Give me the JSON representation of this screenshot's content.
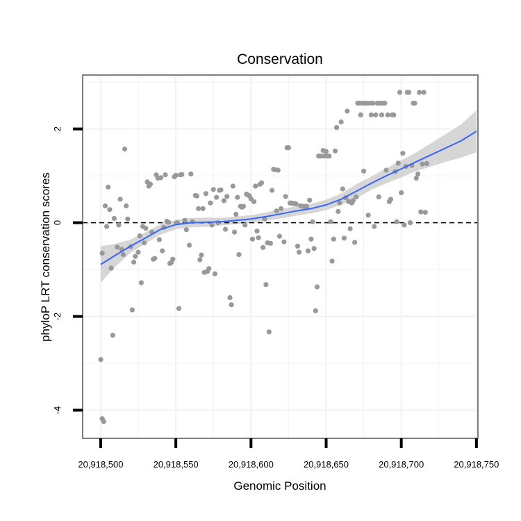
{
  "chart_data": {
    "type": "scatter",
    "title": "Conservation",
    "xlabel": "Genomic Position",
    "ylabel": "phyloP LRT conservation scores",
    "xlim": [
      20918488,
      20918751
    ],
    "ylim": [
      -4.6,
      3.15
    ],
    "x_ticks": [
      {
        "value": 20918500,
        "label": "20,918,500"
      },
      {
        "value": 20918550,
        "label": "20,918,550"
      },
      {
        "value": 20918600,
        "label": "20,918,600"
      },
      {
        "value": 20918650,
        "label": "20,918,650"
      },
      {
        "value": 20918700,
        "label": "20,918,700"
      },
      {
        "value": 20918750,
        "label": "20,918,750"
      }
    ],
    "y_ticks": [
      {
        "value": 2,
        "label": "2"
      },
      {
        "value": 0,
        "label": "0"
      },
      {
        "value": -2,
        "label": "-2"
      },
      {
        "value": -4,
        "label": "-4"
      }
    ],
    "grid": true,
    "reference_line": {
      "y": 0,
      "style": "dashed"
    },
    "colors": {
      "points": "#999999",
      "smooth": "#3366ff",
      "band": "#cccccc",
      "frame": "#7f7f7f",
      "grid": "#f2f2f2"
    },
    "points": [
      [
        20918500,
        -2.92
      ],
      [
        20918501,
        -4.18
      ],
      [
        20918502,
        -4.24
      ],
      [
        20918501,
        -0.65
      ],
      [
        20918503,
        0.36
      ],
      [
        20918504,
        -0.08
      ],
      [
        20918505,
        0.76
      ],
      [
        20918506,
        0.28
      ],
      [
        20918507,
        -0.97
      ],
      [
        20918508,
        -2.4
      ],
      [
        20918509,
        0.09
      ],
      [
        20918511,
        -0.52
      ],
      [
        20918512,
        -0.05
      ],
      [
        20918513,
        0.5
      ],
      [
        20918514,
        -0.57
      ],
      [
        20918515,
        -0.68
      ],
      [
        20918516,
        1.57
      ],
      [
        20918517,
        0.36
      ],
      [
        20918518,
        0.08
      ],
      [
        20918520,
        -0.51
      ],
      [
        20918521,
        -1.86
      ],
      [
        20918522,
        -0.84
      ],
      [
        20918523,
        -0.72
      ],
      [
        20918525,
        -0.63
      ],
      [
        20918526,
        -0.28
      ],
      [
        20918527,
        -1.28
      ],
      [
        20918528,
        -0.08
      ],
      [
        20918529,
        -0.43
      ],
      [
        20918530,
        -0.12
      ],
      [
        20918531,
        0.87
      ],
      [
        20918532,
        0.78
      ],
      [
        20918533,
        0.82
      ],
      [
        20918534,
        -0.2
      ],
      [
        20918535,
        -0.78
      ],
      [
        20918536,
        -0.76
      ],
      [
        20918537,
        1.02
      ],
      [
        20918538,
        0.95
      ],
      [
        20918539,
        -0.36
      ],
      [
        20918540,
        0.96
      ],
      [
        20918541,
        -0.6
      ],
      [
        20918542,
        -0.1
      ],
      [
        20918543,
        1.02
      ],
      [
        20918544,
        0.03
      ],
      [
        20918545,
        0.01
      ],
      [
        20918546,
        -0.87
      ],
      [
        20918547,
        -0.85
      ],
      [
        20918548,
        -0.78
      ],
      [
        20918549,
        0.98
      ],
      [
        20918550,
        1.01
      ],
      [
        20918551,
        0.0
      ],
      [
        20918552,
        -1.83
      ],
      [
        20918553,
        1.02
      ],
      [
        20918554,
        1.03
      ],
      [
        20918556,
        0.05
      ],
      [
        20918557,
        -0.15
      ],
      [
        20918559,
        -0.48
      ],
      [
        20918560,
        1.04
      ],
      [
        20918561,
        0.02
      ],
      [
        20918563,
        0.58
      ],
      [
        20918564,
        0.57
      ],
      [
        20918565,
        0.3
      ],
      [
        20918566,
        -0.79
      ],
      [
        20918567,
        -0.69
      ],
      [
        20918568,
        0.3
      ],
      [
        20918569,
        -1.06
      ],
      [
        20918570,
        0.62
      ],
      [
        20918571,
        -1.04
      ],
      [
        20918572,
        -0.98
      ],
      [
        20918573,
        0.42
      ],
      [
        20918574,
        -0.05
      ],
      [
        20918575,
        0.71
      ],
      [
        20918576,
        -1.09
      ],
      [
        20918577,
        0.54
      ],
      [
        20918578,
        0.0
      ],
      [
        20918579,
        0.69
      ],
      [
        20918580,
        0.7
      ],
      [
        20918582,
        0.47
      ],
      [
        20918583,
        -0.14
      ],
      [
        20918584,
        0.56
      ],
      [
        20918586,
        -1.6
      ],
      [
        20918587,
        -1.75
      ],
      [
        20918588,
        0.78
      ],
      [
        20918589,
        -0.2
      ],
      [
        20918590,
        0.18
      ],
      [
        20918591,
        0.54
      ],
      [
        20918592,
        -0.68
      ],
      [
        20918593,
        0.35
      ],
      [
        20918594,
        0.33
      ],
      [
        20918595,
        0.35
      ],
      [
        20918596,
        -0.05
      ],
      [
        20918597,
        0.61
      ],
      [
        20918598,
        0.59
      ],
      [
        20918599,
        0.57
      ],
      [
        20918600,
        0.51
      ],
      [
        20918601,
        -0.35
      ],
      [
        20918602,
        0.45
      ],
      [
        20918603,
        0.78
      ],
      [
        20918604,
        -0.18
      ],
      [
        20918605,
        -0.32
      ],
      [
        20918606,
        0.82
      ],
      [
        20918607,
        0.85
      ],
      [
        20918608,
        -0.53
      ],
      [
        20918609,
        0.08
      ],
      [
        20918610,
        -1.32
      ],
      [
        20918611,
        -0.43
      ],
      [
        20918612,
        -2.33
      ],
      [
        20918613,
        -0.44
      ],
      [
        20918614,
        0.69
      ],
      [
        20918615,
        1.14
      ],
      [
        20918616,
        1.13
      ],
      [
        20918617,
        0.25
      ],
      [
        20918618,
        1.12
      ],
      [
        20918619,
        -0.29
      ],
      [
        20918620,
        0.3
      ],
      [
        20918622,
        -0.41
      ],
      [
        20918623,
        0.56
      ],
      [
        20918624,
        1.6
      ],
      [
        20918625,
        1.6
      ],
      [
        20918626,
        0.42
      ],
      [
        20918627,
        0.42
      ],
      [
        20918628,
        0.41
      ],
      [
        20918629,
        0.41
      ],
      [
        20918630,
        0.4
      ],
      [
        20918631,
        -0.5
      ],
      [
        20918632,
        -0.63
      ],
      [
        20918633,
        0.36
      ],
      [
        20918634,
        0.35
      ],
      [
        20918635,
        0.35
      ],
      [
        20918636,
        0.35
      ],
      [
        20918637,
        0.35
      ],
      [
        20918638,
        -0.6
      ],
      [
        20918639,
        0.48
      ],
      [
        20918640,
        -0.35
      ],
      [
        20918641,
        0.02
      ],
      [
        20918642,
        -0.55
      ],
      [
        20918643,
        -1.88
      ],
      [
        20918644,
        -1.37
      ],
      [
        20918645,
        1.42
      ],
      [
        20918646,
        1.42
      ],
      [
        20918647,
        1.42
      ],
      [
        20918648,
        1.54
      ],
      [
        20918649,
        1.42
      ],
      [
        20918650,
        1.52
      ],
      [
        20918651,
        1.42
      ],
      [
        20918652,
        1.42
      ],
      [
        20918653,
        0.02
      ],
      [
        20918654,
        -0.82
      ],
      [
        20918655,
        -0.35
      ],
      [
        20918656,
        1.53
      ],
      [
        20918657,
        2.03
      ],
      [
        20918658,
        0.24
      ],
      [
        20918659,
        0.42
      ],
      [
        20918660,
        2.15
      ],
      [
        20918661,
        0.72
      ],
      [
        20918662,
        -0.33
      ],
      [
        20918663,
        0.53
      ],
      [
        20918664,
        2.38
      ],
      [
        20918665,
        0.45
      ],
      [
        20918666,
        -0.13
      ],
      [
        20918667,
        0.42
      ],
      [
        20918668,
        0.47
      ],
      [
        20918669,
        -0.42
      ],
      [
        20918670,
        0.55
      ],
      [
        20918671,
        2.55
      ],
      [
        20918672,
        2.55
      ],
      [
        20918673,
        2.3
      ],
      [
        20918674,
        2.55
      ],
      [
        20918675,
        1.1
      ],
      [
        20918676,
        2.55
      ],
      [
        20918677,
        2.55
      ],
      [
        20918678,
        0.16
      ],
      [
        20918679,
        2.55
      ],
      [
        20918680,
        2.3
      ],
      [
        20918681,
        2.55
      ],
      [
        20918682,
        -0.08
      ],
      [
        20918683,
        2.3
      ],
      [
        20918684,
        2.55
      ],
      [
        20918685,
        0.55
      ],
      [
        20918686,
        2.55
      ],
      [
        20918687,
        2.3
      ],
      [
        20918688,
        2.55
      ],
      [
        20918689,
        2.55
      ],
      [
        20918690,
        1.12
      ],
      [
        20918691,
        2.3
      ],
      [
        20918692,
        0.45
      ],
      [
        20918693,
        0.5
      ],
      [
        20918694,
        2.3
      ],
      [
        20918695,
        2.3
      ],
      [
        20918696,
        1.09
      ],
      [
        20918697,
        0.02
      ],
      [
        20918698,
        1.27
      ],
      [
        20918699,
        2.78
      ],
      [
        20918700,
        0.64
      ],
      [
        20918701,
        1.48
      ],
      [
        20918702,
        -0.05
      ],
      [
        20918703,
        1.2
      ],
      [
        20918704,
        2.78
      ],
      [
        20918705,
        2.78
      ],
      [
        20918706,
        0.0
      ],
      [
        20918707,
        1.22
      ],
      [
        20918708,
        2.55
      ],
      [
        20918709,
        2.55
      ],
      [
        20918710,
        0.95
      ],
      [
        20918711,
        1.04
      ],
      [
        20918712,
        2.78
      ],
      [
        20918713,
        0.23
      ],
      [
        20918714,
        1.25
      ],
      [
        20918715,
        2.78
      ],
      [
        20918716,
        0.22
      ],
      [
        20918717,
        1.26
      ]
    ],
    "smooth": {
      "x": [
        20918500,
        20918510,
        20918520,
        20918530,
        20918540,
        20918550,
        20918560,
        20918570,
        20918580,
        20918590,
        20918600,
        20918610,
        20918620,
        20918630,
        20918640,
        20918650,
        20918660,
        20918670,
        20918680,
        20918690,
        20918700,
        20918710,
        20918720,
        20918730,
        20918740,
        20918750
      ],
      "y": [
        -0.89,
        -0.69,
        -0.5,
        -0.32,
        -0.14,
        -0.04,
        0.0,
        0.01,
        0.02,
        0.05,
        0.08,
        0.13,
        0.19,
        0.25,
        0.3,
        0.38,
        0.5,
        0.67,
        0.84,
        1.0,
        1.15,
        1.3,
        1.45,
        1.6,
        1.75,
        1.95
      ],
      "lower": [
        -1.28,
        -0.93,
        -0.64,
        -0.44,
        -0.25,
        -0.14,
        -0.1,
        -0.09,
        -0.06,
        -0.03,
        0.0,
        0.04,
        0.09,
        0.15,
        0.2,
        0.27,
        0.38,
        0.52,
        0.7,
        0.84,
        0.97,
        1.1,
        1.2,
        1.3,
        1.39,
        1.5
      ],
      "upper": [
        -0.5,
        -0.45,
        -0.36,
        -0.2,
        -0.03,
        0.06,
        0.1,
        0.11,
        0.1,
        0.13,
        0.16,
        0.22,
        0.29,
        0.35,
        0.4,
        0.49,
        0.62,
        0.82,
        0.98,
        1.16,
        1.33,
        1.5,
        1.7,
        1.9,
        2.1,
        2.4
      ]
    }
  }
}
